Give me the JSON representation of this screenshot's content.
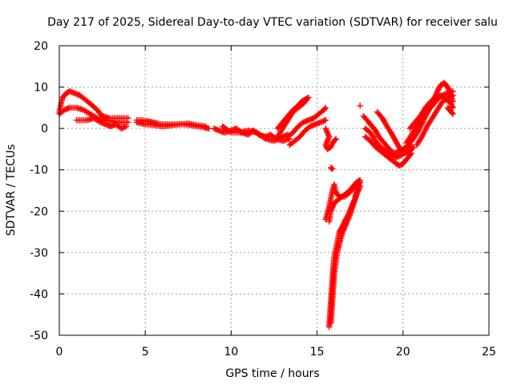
{
  "chart_data": {
    "type": "scatter",
    "title": "Day 217 of 2025, Sidereal Day-to-day VTEC variation (SDTVAR) for receiver salu",
    "xlabel": "GPS time / hours",
    "ylabel": "SDTVAR / TECUs",
    "xlim": [
      0,
      25
    ],
    "ylim": [
      -50,
      20
    ],
    "xticks": [
      0,
      5,
      10,
      15,
      20,
      25
    ],
    "yticks": [
      -50,
      -40,
      -30,
      -20,
      -10,
      0,
      10,
      20
    ],
    "grid": true,
    "marker": "plus",
    "color": "#ff0000",
    "series": [
      {
        "segments": [
          [
            [
              0.0,
              4.0
            ],
            [
              0.1,
              6.0
            ],
            [
              0.2,
              7.5
            ],
            [
              0.4,
              8.5
            ],
            [
              0.6,
              9.0
            ],
            [
              0.9,
              8.5
            ],
            [
              1.2,
              8.0
            ],
            [
              1.5,
              7.0
            ],
            [
              1.8,
              6.0
            ],
            [
              2.2,
              4.5
            ],
            [
              2.5,
              3.0
            ],
            [
              2.9,
              2.5
            ],
            [
              3.3,
              2.5
            ],
            [
              3.7,
              2.5
            ],
            [
              4.0,
              2.5
            ]
          ],
          [
            [
              0.0,
              3.5
            ],
            [
              0.3,
              4.5
            ],
            [
              0.6,
              5.0
            ],
            [
              1.0,
              5.0
            ],
            [
              1.4,
              4.5
            ],
            [
              1.8,
              3.5
            ],
            [
              2.2,
              2.5
            ],
            [
              2.6,
              2.0
            ],
            [
              3.0,
              1.8
            ],
            [
              3.4,
              1.5
            ],
            [
              3.7,
              1.5
            ],
            [
              4.0,
              1.5
            ]
          ],
          [
            [
              1.0,
              2.0
            ],
            [
              1.3,
              2.0
            ],
            [
              1.6,
              2.0
            ],
            [
              2.0,
              2.5
            ],
            [
              2.4,
              1.5
            ],
            [
              2.7,
              1.0
            ],
            [
              3.0,
              0.5
            ],
            [
              3.3,
              1.0
            ],
            [
              3.6,
              0.0
            ],
            [
              3.9,
              0.5
            ]
          ],
          [
            [
              4.5,
              2.0
            ],
            [
              4.8,
              2.0
            ],
            [
              5.1,
              1.8
            ],
            [
              5.4,
              1.5
            ],
            [
              5.7,
              1.2
            ],
            [
              6.0,
              1.0
            ],
            [
              6.4,
              1.0
            ],
            [
              6.8,
              1.0
            ],
            [
              7.2,
              1.0
            ],
            [
              7.6,
              0.8
            ],
            [
              8.0,
              0.5
            ],
            [
              8.4,
              0.3
            ],
            [
              8.7,
              0.0
            ]
          ],
          [
            [
              4.5,
              1.5
            ],
            [
              5.0,
              1.0
            ],
            [
              5.5,
              0.8
            ],
            [
              6.0,
              0.5
            ],
            [
              6.5,
              0.7
            ],
            [
              7.0,
              1.0
            ],
            [
              7.5,
              1.2
            ],
            [
              8.0,
              0.8
            ],
            [
              8.5,
              0.5
            ]
          ],
          [
            [
              9.0,
              0.0
            ],
            [
              9.3,
              -0.5
            ],
            [
              9.6,
              -1.0
            ],
            [
              10.0,
              -0.5
            ],
            [
              10.3,
              0.0
            ],
            [
              10.6,
              -1.0
            ],
            [
              11.0,
              -1.5
            ],
            [
              11.3,
              -0.5
            ],
            [
              11.6,
              -1.5
            ],
            [
              12.0,
              -2.0
            ],
            [
              12.3,
              -1.5
            ],
            [
              12.6,
              -2.5
            ],
            [
              13.0,
              -3.0
            ],
            [
              13.4,
              -2.5
            ]
          ],
          [
            [
              9.5,
              0.5
            ],
            [
              10.0,
              -1.0
            ],
            [
              10.5,
              -1.0
            ],
            [
              11.0,
              -0.5
            ],
            [
              11.5,
              -1.0
            ],
            [
              12.0,
              -2.5
            ],
            [
              12.5,
              -3.0
            ],
            [
              13.0,
              -2.0
            ],
            [
              13.3,
              -1.5
            ]
          ],
          [
            [
              12.7,
              0.0
            ],
            [
              13.0,
              1.5
            ],
            [
              13.3,
              3.0
            ],
            [
              13.6,
              4.5
            ],
            [
              13.9,
              5.5
            ],
            [
              14.1,
              6.5
            ],
            [
              14.3,
              7.0
            ],
            [
              14.5,
              7.5
            ]
          ],
          [
            [
              12.7,
              -2.0
            ],
            [
              13.0,
              0.0
            ],
            [
              13.3,
              2.0
            ],
            [
              13.6,
              4.0
            ],
            [
              13.9,
              5.0
            ],
            [
              14.2,
              6.0
            ],
            [
              14.4,
              7.0
            ]
          ],
          [
            [
              13.3,
              -2.0
            ],
            [
              13.6,
              -1.0
            ],
            [
              13.9,
              0.5
            ],
            [
              14.2,
              1.5
            ],
            [
              14.5,
              2.0
            ],
            [
              14.8,
              2.5
            ],
            [
              15.1,
              3.5
            ],
            [
              15.4,
              4.5
            ],
            [
              15.5,
              5.0
            ]
          ],
          [
            [
              13.4,
              -4.0
            ],
            [
              13.7,
              -3.0
            ],
            [
              14.0,
              -2.0
            ],
            [
              14.3,
              -0.5
            ],
            [
              14.6,
              0.5
            ],
            [
              14.9,
              1.0
            ],
            [
              15.2,
              1.5
            ],
            [
              15.5,
              2.0
            ]
          ],
          [
            [
              15.5,
              0.0
            ],
            [
              15.7,
              -2.0
            ],
            [
              15.5,
              -4.0
            ],
            [
              15.6,
              -5.0
            ],
            [
              15.8,
              -4.5
            ],
            [
              15.9,
              -3.5
            ],
            [
              16.0,
              -3.0
            ],
            [
              16.1,
              -2.5
            ]
          ],
          [
            [
              15.8,
              -9.5
            ],
            [
              15.9,
              -9.8
            ]
          ],
          [
            [
              15.5,
              -22.0
            ],
            [
              15.7,
              -19.0
            ],
            [
              15.8,
              -17.0
            ],
            [
              15.9,
              -15.0
            ],
            [
              16.0,
              -13.5
            ],
            [
              16.1,
              -15.5
            ],
            [
              16.3,
              -16.5
            ],
            [
              16.6,
              -16.5
            ],
            [
              16.9,
              -15.5
            ],
            [
              17.2,
              -14.0
            ],
            [
              17.5,
              -13.0
            ]
          ],
          [
            [
              15.7,
              -22.5
            ],
            [
              15.8,
              -20.0
            ],
            [
              16.0,
              -18.0
            ],
            [
              16.3,
              -17.0
            ],
            [
              16.6,
              -16.0
            ],
            [
              16.9,
              -15.0
            ],
            [
              17.1,
              -14.0
            ],
            [
              17.3,
              -13.0
            ],
            [
              17.5,
              -12.5
            ]
          ],
          [
            [
              15.7,
              -48.0
            ],
            [
              15.75,
              -45.0
            ],
            [
              15.8,
              -42.0
            ],
            [
              15.85,
              -39.0
            ],
            [
              15.9,
              -36.0
            ],
            [
              15.95,
              -33.0
            ],
            [
              16.0,
              -31.0
            ],
            [
              16.1,
              -29.0
            ],
            [
              16.2,
              -27.0
            ],
            [
              16.3,
              -25.0
            ],
            [
              16.5,
              -23.5
            ],
            [
              16.6,
              -22.5
            ],
            [
              16.8,
              -21.0
            ],
            [
              17.0,
              -19.0
            ],
            [
              17.2,
              -17.0
            ],
            [
              17.3,
              -15.0
            ],
            [
              17.4,
              -14.0
            ],
            [
              17.5,
              -13.0
            ]
          ],
          [
            [
              15.8,
              -47.0
            ],
            [
              15.85,
              -44.0
            ],
            [
              15.9,
              -41.0
            ],
            [
              15.95,
              -38.0
            ],
            [
              16.0,
              -35.0
            ],
            [
              16.1,
              -32.0
            ],
            [
              16.2,
              -29.5
            ],
            [
              16.35,
              -27.0
            ],
            [
              16.5,
              -25.0
            ],
            [
              16.7,
              -23.0
            ],
            [
              16.9,
              -21.0
            ],
            [
              17.1,
              -18.5
            ],
            [
              17.3,
              -16.0
            ],
            [
              17.5,
              -14.0
            ]
          ],
          [
            [
              17.5,
              5.5
            ]
          ],
          [
            [
              17.7,
              3.0
            ],
            [
              18.0,
              1.5
            ],
            [
              18.2,
              0.5
            ],
            [
              18.4,
              -0.5
            ],
            [
              18.6,
              -2.0
            ],
            [
              18.9,
              -3.5
            ],
            [
              19.2,
              -5.0
            ],
            [
              19.5,
              -6.0
            ],
            [
              19.8,
              -5.5
            ],
            [
              20.1,
              -5.0
            ],
            [
              20.4,
              -4.0
            ]
          ],
          [
            [
              17.8,
              0.0
            ],
            [
              18.1,
              -1.0
            ],
            [
              18.4,
              -3.0
            ],
            [
              18.7,
              -4.5
            ],
            [
              19.0,
              -5.5
            ],
            [
              19.3,
              -6.5
            ],
            [
              19.6,
              -7.0
            ],
            [
              19.9,
              -6.5
            ],
            [
              20.2,
              -5.5
            ]
          ],
          [
            [
              17.8,
              -2.0
            ],
            [
              18.1,
              -3.0
            ],
            [
              18.4,
              -4.5
            ],
            [
              18.7,
              -5.5
            ],
            [
              19.0,
              -6.5
            ],
            [
              19.3,
              -7.5
            ],
            [
              19.6,
              -8.5
            ],
            [
              19.8,
              -9.0
            ],
            [
              20.0,
              -8.5
            ],
            [
              20.2,
              -7.5
            ],
            [
              20.5,
              -6.0
            ]
          ],
          [
            [
              18.5,
              4.0
            ],
            [
              18.8,
              2.5
            ],
            [
              19.0,
              1.0
            ],
            [
              19.3,
              -1.0
            ],
            [
              19.5,
              -2.5
            ],
            [
              19.7,
              -4.0
            ],
            [
              19.9,
              -5.5
            ],
            [
              20.1,
              -6.0
            ],
            [
              20.4,
              -5.5
            ],
            [
              20.6,
              -4.5
            ]
          ],
          [
            [
              20.0,
              -5.0
            ],
            [
              20.3,
              -4.0
            ],
            [
              20.6,
              -2.5
            ],
            [
              20.9,
              -0.5
            ],
            [
              21.2,
              2.0
            ],
            [
              21.5,
              4.5
            ],
            [
              21.8,
              7.0
            ],
            [
              22.0,
              9.0
            ],
            [
              22.2,
              10.5
            ],
            [
              22.4,
              11.0
            ],
            [
              22.6,
              10.0
            ],
            [
              22.8,
              8.0
            ],
            [
              22.9,
              6.5
            ]
          ],
          [
            [
              20.2,
              -3.5
            ],
            [
              20.5,
              -1.5
            ],
            [
              20.8,
              0.5
            ],
            [
              21.1,
              2.5
            ],
            [
              21.4,
              4.0
            ],
            [
              21.7,
              5.5
            ],
            [
              22.0,
              7.0
            ],
            [
              22.3,
              8.0
            ],
            [
              22.6,
              8.5
            ],
            [
              22.9,
              9.0
            ]
          ],
          [
            [
              20.4,
              0.0
            ],
            [
              20.7,
              1.5
            ],
            [
              21.0,
              3.0
            ],
            [
              21.3,
              5.0
            ],
            [
              21.6,
              6.5
            ],
            [
              21.9,
              7.5
            ],
            [
              22.2,
              8.0
            ],
            [
              22.5,
              7.0
            ],
            [
              22.8,
              6.0
            ],
            [
              22.9,
              5.0
            ]
          ],
          [
            [
              20.8,
              -4.0
            ],
            [
              21.1,
              -2.0
            ],
            [
              21.4,
              0.5
            ],
            [
              21.7,
              2.5
            ],
            [
              22.0,
              4.5
            ],
            [
              22.3,
              6.5
            ],
            [
              22.6,
              7.5
            ],
            [
              22.9,
              8.0
            ]
          ],
          [
            [
              22.6,
              5.0
            ],
            [
              22.8,
              4.0
            ],
            [
              22.9,
              3.5
            ]
          ]
        ]
      }
    ]
  }
}
